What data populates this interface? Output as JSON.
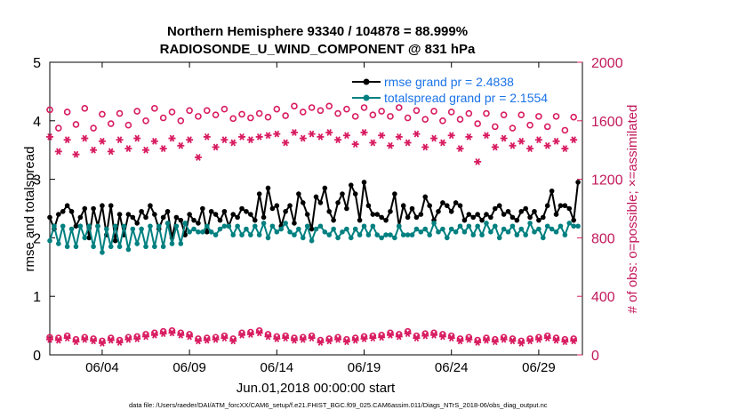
{
  "chart_data": {
    "type": "line",
    "title": [
      "Northern Hemisphere 93340 / 104878 = 88.999%",
      "RADIOSONDE_U_WIND_COMPONENT @ 831 hPa"
    ],
    "xlabel": "Jun.01,2018 00:00:00 start",
    "ylabel_left": "rmse and totalspread",
    "ylabel_right": "# of obs: o=possible; ×=assimilated",
    "ylim_left": [
      0,
      5
    ],
    "ylim_right": [
      0,
      2000
    ],
    "xlim": [
      1.0,
      31.5
    ],
    "x_ticks": [
      4,
      9,
      14,
      19,
      24,
      29
    ],
    "x_tick_labels": [
      "06/04",
      "06/09",
      "06/14",
      "06/19",
      "06/24",
      "06/29"
    ],
    "y_left_ticks": [
      "0",
      "1",
      "2",
      "3",
      "4",
      "5"
    ],
    "y_right_ticks": [
      "0",
      "400",
      "800",
      "1200",
      "1600",
      "2000"
    ],
    "grid": false,
    "legend_position": "top-right",
    "footer": "data file: /Users/raeder/DAI/ATM_forcXX/CAM6_setup/f.e21.FHIST_BGC.f09_025.CAM6assim.011/Diags_NTrS_2018-06/obs_diag_output.nc",
    "colors": {
      "rmse": "#000000",
      "spread": "#008080",
      "obs": "#d81b60",
      "legend_text": "#1a73e8"
    },
    "series": [
      {
        "name": "rmse grand pr = 2.4838",
        "axis": "left",
        "x": [
          1.0,
          1.25,
          1.5,
          1.75,
          2.0,
          2.25,
          2.5,
          2.75,
          3.0,
          3.25,
          3.5,
          3.75,
          4.0,
          4.25,
          4.5,
          4.75,
          5.0,
          5.25,
          5.5,
          5.75,
          6.0,
          6.25,
          6.5,
          6.75,
          7.0,
          7.25,
          7.5,
          7.75,
          8.0,
          8.25,
          8.5,
          8.75,
          9.0,
          9.25,
          9.5,
          9.75,
          10.0,
          10.25,
          10.5,
          10.75,
          11.0,
          11.25,
          11.5,
          11.75,
          12.0,
          12.25,
          12.5,
          12.75,
          13.0,
          13.25,
          13.5,
          13.75,
          14.0,
          14.25,
          14.5,
          14.75,
          15.0,
          15.25,
          15.5,
          15.75,
          16.0,
          16.25,
          16.5,
          16.75,
          17.0,
          17.25,
          17.5,
          17.75,
          18.0,
          18.25,
          18.5,
          18.75,
          19.0,
          19.25,
          19.5,
          19.75,
          20.0,
          20.25,
          20.5,
          20.75,
          21.0,
          21.25,
          21.5,
          21.75,
          22.0,
          22.25,
          22.5,
          22.75,
          23.0,
          23.25,
          23.5,
          23.75,
          24.0,
          24.25,
          24.5,
          24.75,
          25.0,
          25.25,
          25.5,
          25.75,
          26.0,
          26.25,
          26.5,
          26.75,
          27.0,
          27.25,
          27.5,
          27.75,
          28.0,
          28.25,
          28.5,
          28.75,
          29.0,
          29.25,
          29.5,
          29.75,
          30.0,
          30.25,
          30.5,
          30.75,
          31.0,
          31.25
        ],
        "values": [
          2.35,
          2.15,
          2.4,
          2.45,
          2.55,
          2.45,
          2.2,
          2.35,
          2.5,
          2.0,
          2.5,
          2.2,
          2.55,
          2.05,
          2.55,
          1.95,
          2.4,
          2.05,
          2.4,
          2.35,
          2.25,
          2.45,
          2.35,
          2.55,
          2.4,
          2.15,
          2.35,
          2.45,
          2.0,
          2.35,
          2.3,
          2.05,
          2.4,
          2.3,
          2.25,
          2.5,
          2.1,
          2.45,
          2.4,
          2.3,
          2.45,
          2.2,
          2.4,
          2.35,
          2.5,
          2.45,
          2.4,
          2.3,
          2.75,
          2.35,
          2.85,
          2.5,
          2.55,
          2.2,
          2.45,
          2.55,
          2.25,
          2.75,
          2.6,
          2.4,
          2.15,
          2.7,
          2.6,
          2.85,
          2.45,
          2.3,
          2.6,
          2.75,
          2.5,
          2.9,
          2.75,
          2.3,
          2.95,
          2.55,
          2.4,
          2.4,
          2.35,
          2.3,
          2.45,
          2.75,
          2.2,
          2.55,
          2.35,
          2.5,
          2.35,
          2.4,
          2.7,
          2.55,
          2.3,
          2.45,
          2.6,
          2.55,
          2.45,
          2.6,
          2.55,
          2.3,
          2.4,
          2.35,
          2.4,
          2.3,
          2.4,
          2.35,
          2.5,
          2.55,
          2.4,
          2.45,
          2.35,
          2.3,
          2.45,
          2.5,
          2.35,
          2.45,
          2.3,
          2.35,
          2.55,
          2.8,
          2.4,
          2.55,
          2.55,
          2.5,
          2.3,
          2.95
        ]
      },
      {
        "name": "totalspread grand pr = 2.1554",
        "axis": "left",
        "x": [
          1.0,
          1.25,
          1.5,
          1.75,
          2.0,
          2.25,
          2.5,
          2.75,
          3.0,
          3.25,
          3.5,
          3.75,
          4.0,
          4.25,
          4.5,
          4.75,
          5.0,
          5.25,
          5.5,
          5.75,
          6.0,
          6.25,
          6.5,
          6.75,
          7.0,
          7.25,
          7.5,
          7.75,
          8.0,
          8.25,
          8.5,
          8.75,
          9.0,
          9.25,
          9.5,
          9.75,
          10.0,
          10.25,
          10.5,
          10.75,
          11.0,
          11.25,
          11.5,
          11.75,
          12.0,
          12.25,
          12.5,
          12.75,
          13.0,
          13.25,
          13.5,
          13.75,
          14.0,
          14.25,
          14.5,
          14.75,
          15.0,
          15.25,
          15.5,
          15.75,
          16.0,
          16.25,
          16.5,
          16.75,
          17.0,
          17.25,
          17.5,
          17.75,
          18.0,
          18.25,
          18.5,
          18.75,
          19.0,
          19.25,
          19.5,
          19.75,
          20.0,
          20.25,
          20.5,
          20.75,
          21.0,
          21.25,
          21.5,
          21.75,
          22.0,
          22.25,
          22.5,
          22.75,
          23.0,
          23.25,
          23.5,
          23.75,
          24.0,
          24.25,
          24.5,
          24.75,
          25.0,
          25.25,
          25.5,
          25.75,
          26.0,
          26.25,
          26.5,
          26.75,
          27.0,
          27.25,
          27.5,
          27.75,
          28.0,
          28.25,
          28.5,
          28.75,
          29.0,
          29.25,
          29.5,
          29.75,
          30.0,
          30.25,
          30.5,
          30.75,
          31.0,
          31.25
        ],
        "values": [
          1.95,
          2.2,
          1.9,
          2.2,
          1.85,
          2.15,
          1.85,
          2.2,
          2.0,
          2.2,
          1.85,
          2.2,
          1.75,
          2.15,
          1.85,
          2.2,
          1.85,
          2.2,
          1.8,
          2.15,
          1.9,
          2.15,
          1.85,
          2.2,
          1.85,
          2.2,
          1.85,
          2.25,
          1.9,
          2.2,
          1.9,
          2.25,
          2.1,
          2.15,
          2.1,
          2.1,
          2.2,
          2.1,
          2.05,
          2.15,
          2.2,
          2.2,
          2.05,
          2.2,
          2.05,
          2.15,
          2.05,
          2.2,
          2.05,
          2.25,
          2.0,
          2.2,
          2.1,
          2.15,
          2.25,
          2.1,
          2.05,
          2.15,
          2.0,
          2.2,
          1.95,
          2.15,
          2.2,
          2.1,
          2.05,
          2.15,
          2.0,
          2.1,
          2.15,
          2.0,
          2.15,
          2.05,
          2.2,
          2.05,
          2.2,
          2.05,
          2.0,
          2.05,
          2.05,
          2.0,
          2.2,
          2.05,
          2.05,
          2.05,
          2.15,
          2.1,
          2.15,
          2.05,
          2.25,
          2.1,
          2.15,
          2.0,
          2.15,
          2.1,
          2.2,
          2.1,
          2.2,
          2.05,
          2.2,
          2.05,
          2.25,
          2.1,
          2.2,
          2.0,
          2.15,
          2.1,
          2.2,
          2.05,
          2.15,
          2.05,
          2.25,
          2.1,
          2.15,
          2.0,
          2.2,
          2.15,
          2.1,
          2.2,
          2.05,
          2.25,
          2.2,
          2.2
        ]
      },
      {
        "name": "possible obs (upper band)",
        "axis": "right",
        "marker": "o",
        "x": [
          1.0,
          1.5,
          2.0,
          2.5,
          3.0,
          3.5,
          4.0,
          4.5,
          5.0,
          5.5,
          6.0,
          6.5,
          7.0,
          7.5,
          8.0,
          8.5,
          9.0,
          9.5,
          10.0,
          10.5,
          11.0,
          11.5,
          12.0,
          12.5,
          13.0,
          13.5,
          14.0,
          14.5,
          15.0,
          15.5,
          16.0,
          16.5,
          17.0,
          17.5,
          18.0,
          18.5,
          19.0,
          19.5,
          20.0,
          20.5,
          21.0,
          21.5,
          22.0,
          22.5,
          23.0,
          23.5,
          24.0,
          24.5,
          25.0,
          25.5,
          26.0,
          26.5,
          27.0,
          27.5,
          28.0,
          28.5,
          29.0,
          29.5,
          30.0,
          30.5,
          31.0
        ],
        "values": [
          1675,
          1550,
          1660,
          1575,
          1685,
          1550,
          1645,
          1580,
          1650,
          1570,
          1665,
          1600,
          1685,
          1620,
          1660,
          1600,
          1670,
          1630,
          1670,
          1640,
          1680,
          1615,
          1645,
          1620,
          1650,
          1625,
          1680,
          1635,
          1700,
          1660,
          1690,
          1670,
          1700,
          1650,
          1680,
          1630,
          1690,
          1640,
          1665,
          1630,
          1690,
          1620,
          1670,
          1610,
          1665,
          1600,
          1660,
          1610,
          1650,
          1580,
          1650,
          1560,
          1640,
          1550,
          1640,
          1570,
          1630,
          1560,
          1630,
          1535,
          1625
        ]
      },
      {
        "name": "assimilated obs (upper band)",
        "axis": "right",
        "marker": "x",
        "x": [
          1.0,
          1.5,
          2.0,
          2.5,
          3.0,
          3.5,
          4.0,
          4.5,
          5.0,
          5.5,
          6.0,
          6.5,
          7.0,
          7.5,
          8.0,
          8.5,
          9.0,
          9.5,
          10.0,
          10.5,
          11.0,
          11.5,
          12.0,
          12.5,
          13.0,
          13.5,
          14.0,
          14.5,
          15.0,
          15.5,
          16.0,
          16.5,
          17.0,
          17.5,
          18.0,
          18.5,
          19.0,
          19.5,
          20.0,
          20.5,
          21.0,
          21.5,
          22.0,
          22.5,
          23.0,
          23.5,
          24.0,
          24.5,
          25.0,
          25.5,
          26.0,
          26.5,
          27.0,
          27.5,
          28.0,
          28.5,
          29.0,
          29.5,
          30.0,
          30.5,
          31.0
        ],
        "values": [
          1490,
          1390,
          1470,
          1370,
          1480,
          1400,
          1460,
          1390,
          1470,
          1410,
          1480,
          1400,
          1460,
          1410,
          1480,
          1430,
          1470,
          1350,
          1490,
          1420,
          1470,
          1450,
          1490,
          1470,
          1490,
          1500,
          1510,
          1450,
          1520,
          1480,
          1510,
          1490,
          1520,
          1470,
          1500,
          1440,
          1520,
          1450,
          1500,
          1430,
          1490,
          1450,
          1510,
          1420,
          1480,
          1450,
          1500,
          1410,
          1490,
          1320,
          1500,
          1420,
          1480,
          1430,
          1460,
          1410,
          1470,
          1430,
          1460,
          1410,
          1470
        ]
      },
      {
        "name": "possible obs (lower band)",
        "axis": "right",
        "marker": "o",
        "x": [
          1.0,
          1.5,
          2.0,
          2.5,
          3.0,
          3.5,
          4.0,
          4.5,
          5.0,
          5.5,
          6.0,
          6.5,
          7.0,
          7.5,
          8.0,
          8.5,
          9.0,
          9.5,
          10.0,
          10.5,
          11.0,
          11.5,
          12.0,
          12.5,
          13.0,
          13.5,
          14.0,
          14.5,
          15.0,
          15.5,
          16.0,
          16.5,
          17.0,
          17.5,
          18.0,
          18.5,
          19.0,
          19.5,
          20.0,
          20.5,
          21.0,
          21.5,
          22.0,
          22.5,
          23.0,
          23.5,
          24.0,
          24.5,
          25.0,
          25.5,
          26.0,
          26.5,
          27.0,
          27.5,
          28.0,
          28.5,
          29.0,
          29.5,
          30.0,
          30.5,
          31.0
        ],
        "values": [
          120,
          115,
          130,
          105,
          120,
          110,
          95,
          115,
          100,
          120,
          125,
          140,
          150,
          160,
          165,
          150,
          140,
          110,
          115,
          120,
          130,
          110,
          150,
          155,
          165,
          140,
          125,
          130,
          115,
          120,
          130,
          100,
          110,
          120,
          105,
          115,
          125,
          130,
          135,
          150,
          140,
          160,
          130,
          145,
          150,
          140,
          130,
          110,
          120,
          100,
          115,
          105,
          120,
          110,
          95,
          110,
          120,
          130,
          115,
          105,
          110
        ]
      },
      {
        "name": "assimilated obs (lower band)",
        "axis": "right",
        "marker": "x",
        "x": [
          1.0,
          1.5,
          2.0,
          2.5,
          3.0,
          3.5,
          4.0,
          4.5,
          5.0,
          5.5,
          6.0,
          6.5,
          7.0,
          7.5,
          8.0,
          8.5,
          9.0,
          9.5,
          10.0,
          10.5,
          11.0,
          11.5,
          12.0,
          12.5,
          13.0,
          13.5,
          14.0,
          14.5,
          15.0,
          15.5,
          16.0,
          16.5,
          17.0,
          17.5,
          18.0,
          18.5,
          19.0,
          19.5,
          20.0,
          20.5,
          21.0,
          21.5,
          22.0,
          22.5,
          23.0,
          23.5,
          24.0,
          24.5,
          25.0,
          25.5,
          26.0,
          26.5,
          27.0,
          27.5,
          28.0,
          28.5,
          29.0,
          29.5,
          30.0,
          30.5,
          31.0
        ],
        "values": [
          105,
          100,
          115,
          90,
          105,
          95,
          80,
          100,
          85,
          105,
          110,
          125,
          135,
          145,
          150,
          135,
          125,
          95,
          100,
          105,
          115,
          95,
          135,
          140,
          150,
          125,
          110,
          115,
          100,
          105,
          115,
          85,
          95,
          105,
          90,
          100,
          110,
          115,
          120,
          135,
          125,
          145,
          115,
          130,
          135,
          125,
          115,
          95,
          105,
          85,
          100,
          90,
          105,
          95,
          80,
          95,
          105,
          115,
          100,
          90,
          95
        ]
      }
    ]
  }
}
